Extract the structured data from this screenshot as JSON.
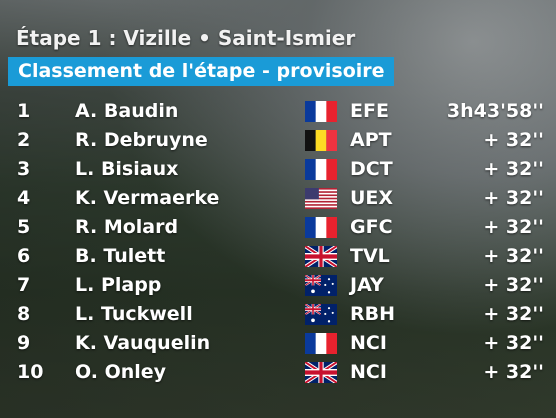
{
  "header": {
    "title": "Étape 1 : Vizille • Saint-Ismier",
    "subtitle": "Classement de l'étape - provisoire"
  },
  "table": {
    "rows": [
      [
        1,
        "A. Baudin",
        "EFE",
        "3h43'58''"
      ],
      [
        2,
        "R. Debruyne",
        "APT",
        "+ 32''"
      ],
      [
        3,
        "L. Bisiaux",
        "DCT",
        "+ 32''"
      ],
      [
        4,
        "K. Vermaerke",
        "UEX",
        "+ 32''"
      ],
      [
        5,
        "R. Molard",
        "GFC",
        "+ 32''"
      ],
      [
        6,
        "B. Tulett",
        "TVL",
        "+ 32''"
      ],
      [
        7,
        "L. Plapp",
        "JAY",
        "+ 32''"
      ],
      [
        8,
        "L. Tuckwell",
        "RBH",
        "+ 32''"
      ],
      [
        9,
        "K. Vauquelin",
        "NCI",
        "+ 32''"
      ],
      [
        10,
        "O. Onley",
        "NCI",
        "+ 32''"
      ]
    ]
  }
}
